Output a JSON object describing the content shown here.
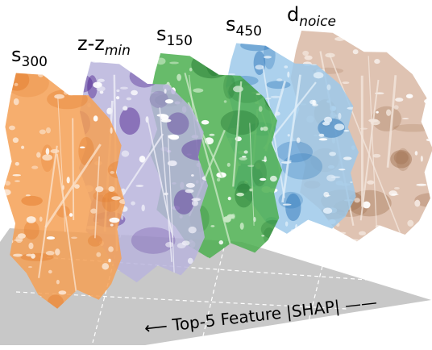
{
  "panels": [
    {
      "label": "s",
      "sub": "300",
      "italic_sub": false,
      "color": "#f4a055",
      "dark": "#e0701c",
      "light": "#fbe0c8"
    },
    {
      "label": "z-z",
      "sub": "min",
      "italic_sub": true,
      "color": "#b8b4dc",
      "dark": "#4b1f8f",
      "light": "#eeeef7"
    },
    {
      "label": "s",
      "sub": "150",
      "italic_sub": false,
      "color": "#4caf50",
      "dark": "#1b6e2a",
      "light": "#c8e8c4"
    },
    {
      "label": "s",
      "sub": "450",
      "italic_sub": false,
      "color": "#9ec9ea",
      "dark": "#2a74b8",
      "light": "#e2eff9"
    },
    {
      "label": "d",
      "sub": "noice",
      "italic_sub": true,
      "color": "#d9b8a4",
      "dark": "#a0704f",
      "light": "#f3e6dd"
    }
  ],
  "axis_label": "⟵ Top-5 Feature |SHAP| ——",
  "floor_color": "#c8c8c8"
}
